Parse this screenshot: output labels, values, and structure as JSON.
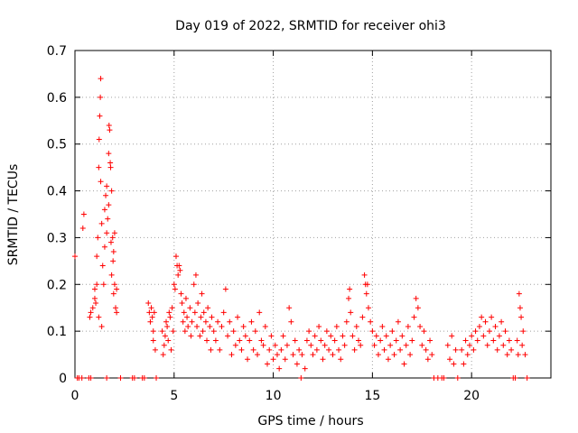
{
  "chart_data": {
    "type": "scatter",
    "title": "Day 019 of 2022, SRMTID for receiver ohi3",
    "xlabel": "GPS time / hours",
    "ylabel": "SRMTID / TECUs",
    "xlim": [
      0,
      24
    ],
    "ylim": [
      0,
      0.7
    ],
    "grid": true,
    "marker": "+",
    "colors": {
      "series": "#ff0000",
      "grid": "#a0a0a0",
      "axis": "#000000"
    },
    "xticks": [
      0,
      5,
      10,
      15,
      20
    ],
    "yticks": [
      0,
      0.1,
      0.2,
      0.3,
      0.4,
      0.5,
      0.6,
      0.7
    ],
    "xtick_labels": [
      "0",
      "5",
      "10",
      "15",
      "20"
    ],
    "ytick_labels": [
      "0",
      "0.1",
      "0.2",
      "0.3",
      "0.4",
      "0.5",
      "0.6",
      "0.7"
    ],
    "series": [
      {
        "name": "ohi3",
        "points": [
          [
            0.0,
            0.26
          ],
          [
            0.12,
            0.0
          ],
          [
            0.2,
            0.0
          ],
          [
            0.35,
            0.0
          ],
          [
            0.4,
            0.32
          ],
          [
            0.45,
            0.35
          ],
          [
            0.7,
            0.0
          ],
          [
            0.8,
            0.0
          ],
          [
            0.75,
            0.13
          ],
          [
            0.8,
            0.14
          ],
          [
            0.9,
            0.15
          ],
          [
            1.0,
            0.17
          ],
          [
            1.0,
            0.19
          ],
          [
            1.05,
            0.16
          ],
          [
            1.1,
            0.2
          ],
          [
            1.1,
            0.26
          ],
          [
            1.15,
            0.3
          ],
          [
            1.2,
            0.13
          ],
          [
            1.2,
            0.45
          ],
          [
            1.22,
            0.51
          ],
          [
            1.25,
            0.56
          ],
          [
            1.28,
            0.6
          ],
          [
            1.3,
            0.64
          ],
          [
            1.3,
            0.42
          ],
          [
            1.35,
            0.33
          ],
          [
            1.35,
            0.11
          ],
          [
            1.4,
            0.24
          ],
          [
            1.45,
            0.2
          ],
          [
            1.5,
            0.36
          ],
          [
            1.5,
            0.28
          ],
          [
            1.55,
            0.39
          ],
          [
            1.6,
            0.41
          ],
          [
            1.6,
            0.31
          ],
          [
            1.65,
            0.34
          ],
          [
            1.7,
            0.37
          ],
          [
            1.7,
            0.48
          ],
          [
            1.72,
            0.54
          ],
          [
            1.75,
            0.53
          ],
          [
            1.78,
            0.46
          ],
          [
            1.8,
            0.45
          ],
          [
            1.82,
            0.29
          ],
          [
            1.85,
            0.4
          ],
          [
            1.85,
            0.22
          ],
          [
            1.9,
            0.3
          ],
          [
            1.92,
            0.25
          ],
          [
            1.95,
            0.27
          ],
          [
            1.95,
            0.18
          ],
          [
            2.0,
            0.31
          ],
          [
            2.0,
            0.2
          ],
          [
            2.05,
            0.15
          ],
          [
            2.1,
            0.19
          ],
          [
            2.1,
            0.14
          ],
          [
            1.6,
            0.0
          ],
          [
            2.3,
            0.0
          ],
          [
            2.9,
            0.0
          ],
          [
            3.0,
            0.0
          ],
          [
            3.4,
            0.0
          ],
          [
            3.5,
            0.0
          ],
          [
            3.7,
            0.16
          ],
          [
            3.75,
            0.14
          ],
          [
            3.8,
            0.12
          ],
          [
            3.85,
            0.15
          ],
          [
            3.9,
            0.13
          ],
          [
            3.95,
            0.1
          ],
          [
            3.95,
            0.08
          ],
          [
            4.0,
            0.14
          ],
          [
            4.05,
            0.06
          ],
          [
            4.1,
            0.0
          ],
          [
            4.4,
            0.1
          ],
          [
            4.45,
            0.05
          ],
          [
            4.5,
            0.07
          ],
          [
            4.55,
            0.09
          ],
          [
            4.6,
            0.12
          ],
          [
            4.65,
            0.11
          ],
          [
            4.7,
            0.08
          ],
          [
            4.75,
            0.14
          ],
          [
            4.8,
            0.13
          ],
          [
            4.85,
            0.06
          ],
          [
            4.9,
            0.15
          ],
          [
            4.95,
            0.1
          ],
          [
            5.0,
            0.2
          ],
          [
            5.05,
            0.19
          ],
          [
            5.1,
            0.26
          ],
          [
            5.15,
            0.24
          ],
          [
            5.2,
            0.22
          ],
          [
            5.25,
            0.24
          ],
          [
            5.3,
            0.23
          ],
          [
            5.35,
            0.18
          ],
          [
            5.4,
            0.16
          ],
          [
            5.45,
            0.12
          ],
          [
            5.5,
            0.14
          ],
          [
            5.55,
            0.1
          ],
          [
            5.6,
            0.17
          ],
          [
            5.65,
            0.13
          ],
          [
            5.7,
            0.11
          ],
          [
            5.8,
            0.15
          ],
          [
            5.85,
            0.09
          ],
          [
            5.9,
            0.12
          ],
          [
            6.0,
            0.2
          ],
          [
            6.05,
            0.14
          ],
          [
            6.1,
            0.22
          ],
          [
            6.15,
            0.11
          ],
          [
            6.2,
            0.16
          ],
          [
            6.3,
            0.09
          ],
          [
            6.35,
            0.13
          ],
          [
            6.4,
            0.18
          ],
          [
            6.45,
            0.1
          ],
          [
            6.5,
            0.14
          ],
          [
            6.6,
            0.12
          ],
          [
            6.65,
            0.08
          ],
          [
            6.7,
            0.15
          ],
          [
            6.8,
            0.11
          ],
          [
            6.85,
            0.06
          ],
          [
            6.9,
            0.13
          ],
          [
            7.0,
            0.1
          ],
          [
            7.1,
            0.08
          ],
          [
            7.2,
            0.12
          ],
          [
            7.3,
            0.06
          ],
          [
            7.4,
            0.11
          ],
          [
            7.5,
            0.14
          ],
          [
            7.6,
            0.19
          ],
          [
            7.7,
            0.09
          ],
          [
            7.8,
            0.12
          ],
          [
            7.9,
            0.05
          ],
          [
            8.0,
            0.1
          ],
          [
            8.1,
            0.07
          ],
          [
            8.2,
            0.13
          ],
          [
            8.3,
            0.08
          ],
          [
            8.4,
            0.06
          ],
          [
            8.5,
            0.11
          ],
          [
            8.6,
            0.09
          ],
          [
            8.7,
            0.04
          ],
          [
            8.8,
            0.08
          ],
          [
            8.9,
            0.12
          ],
          [
            9.0,
            0.06
          ],
          [
            9.1,
            0.1
          ],
          [
            9.2,
            0.05
          ],
          [
            9.3,
            0.14
          ],
          [
            9.4,
            0.08
          ],
          [
            9.5,
            0.07
          ],
          [
            9.6,
            0.11
          ],
          [
            9.7,
            0.03
          ],
          [
            9.8,
            0.06
          ],
          [
            9.9,
            0.09
          ],
          [
            10.0,
            0.04
          ],
          [
            10.1,
            0.07
          ],
          [
            10.2,
            0.05
          ],
          [
            10.3,
            0.02
          ],
          [
            10.4,
            0.06
          ],
          [
            10.5,
            0.09
          ],
          [
            10.6,
            0.04
          ],
          [
            10.7,
            0.07
          ],
          [
            10.8,
            0.15
          ],
          [
            10.9,
            0.12
          ],
          [
            11.0,
            0.05
          ],
          [
            11.1,
            0.08
          ],
          [
            11.2,
            0.03
          ],
          [
            11.3,
            0.06
          ],
          [
            11.4,
            0.0
          ],
          [
            11.45,
            0.05
          ],
          [
            11.6,
            0.02
          ],
          [
            11.7,
            0.08
          ],
          [
            11.8,
            0.1
          ],
          [
            11.9,
            0.07
          ],
          [
            12.0,
            0.05
          ],
          [
            12.1,
            0.09
          ],
          [
            12.2,
            0.06
          ],
          [
            12.3,
            0.11
          ],
          [
            12.4,
            0.08
          ],
          [
            12.5,
            0.04
          ],
          [
            12.6,
            0.07
          ],
          [
            12.7,
            0.1
          ],
          [
            12.8,
            0.06
          ],
          [
            12.9,
            0.09
          ],
          [
            13.0,
            0.05
          ],
          [
            13.1,
            0.08
          ],
          [
            13.2,
            0.11
          ],
          [
            13.3,
            0.06
          ],
          [
            13.4,
            0.04
          ],
          [
            13.5,
            0.09
          ],
          [
            13.6,
            0.07
          ],
          [
            13.7,
            0.12
          ],
          [
            13.8,
            0.17
          ],
          [
            13.85,
            0.19
          ],
          [
            13.9,
            0.14
          ],
          [
            14.0,
            0.09
          ],
          [
            14.1,
            0.06
          ],
          [
            14.2,
            0.11
          ],
          [
            14.3,
            0.08
          ],
          [
            14.4,
            0.07
          ],
          [
            14.5,
            0.13
          ],
          [
            14.6,
            0.22
          ],
          [
            14.65,
            0.2
          ],
          [
            14.7,
            0.18
          ],
          [
            14.75,
            0.2
          ],
          [
            14.8,
            0.15
          ],
          [
            14.9,
            0.12
          ],
          [
            15.0,
            0.1
          ],
          [
            15.1,
            0.07
          ],
          [
            15.2,
            0.09
          ],
          [
            15.3,
            0.05
          ],
          [
            15.4,
            0.08
          ],
          [
            15.5,
            0.11
          ],
          [
            15.6,
            0.06
          ],
          [
            15.7,
            0.09
          ],
          [
            15.8,
            0.04
          ],
          [
            15.9,
            0.07
          ],
          [
            16.0,
            0.1
          ],
          [
            16.1,
            0.05
          ],
          [
            16.2,
            0.08
          ],
          [
            16.3,
            0.12
          ],
          [
            16.4,
            0.06
          ],
          [
            16.5,
            0.09
          ],
          [
            16.6,
            0.03
          ],
          [
            16.7,
            0.07
          ],
          [
            16.8,
            0.11
          ],
          [
            16.9,
            0.05
          ],
          [
            17.0,
            0.08
          ],
          [
            17.1,
            0.13
          ],
          [
            17.2,
            0.17
          ],
          [
            17.3,
            0.15
          ],
          [
            17.4,
            0.11
          ],
          [
            17.5,
            0.07
          ],
          [
            17.6,
            0.1
          ],
          [
            17.7,
            0.06
          ],
          [
            17.8,
            0.04
          ],
          [
            17.9,
            0.08
          ],
          [
            18.0,
            0.05
          ],
          [
            18.1,
            0.0
          ],
          [
            18.3,
            0.0
          ],
          [
            18.5,
            0.0
          ],
          [
            18.6,
            0.0
          ],
          [
            18.8,
            0.07
          ],
          [
            18.9,
            0.04
          ],
          [
            19.0,
            0.09
          ],
          [
            19.1,
            0.03
          ],
          [
            19.2,
            0.06
          ],
          [
            19.3,
            0.0
          ],
          [
            19.5,
            0.06
          ],
          [
            19.6,
            0.03
          ],
          [
            19.7,
            0.08
          ],
          [
            19.8,
            0.05
          ],
          [
            19.9,
            0.07
          ],
          [
            20.0,
            0.09
          ],
          [
            20.1,
            0.06
          ],
          [
            20.2,
            0.1
          ],
          [
            20.3,
            0.08
          ],
          [
            20.4,
            0.11
          ],
          [
            20.5,
            0.13
          ],
          [
            20.6,
            0.09
          ],
          [
            20.7,
            0.12
          ],
          [
            20.8,
            0.07
          ],
          [
            20.9,
            0.1
          ],
          [
            21.0,
            0.13
          ],
          [
            21.1,
            0.08
          ],
          [
            21.2,
            0.11
          ],
          [
            21.3,
            0.06
          ],
          [
            21.4,
            0.09
          ],
          [
            21.5,
            0.12
          ],
          [
            21.6,
            0.07
          ],
          [
            21.7,
            0.1
          ],
          [
            21.8,
            0.05
          ],
          [
            21.9,
            0.08
          ],
          [
            22.0,
            0.06
          ],
          [
            22.1,
            0.0
          ],
          [
            22.2,
            0.0
          ],
          [
            22.3,
            0.08
          ],
          [
            22.35,
            0.05
          ],
          [
            22.4,
            0.18
          ],
          [
            22.45,
            0.15
          ],
          [
            22.5,
            0.13
          ],
          [
            22.55,
            0.07
          ],
          [
            22.6,
            0.1
          ],
          [
            22.7,
            0.05
          ],
          [
            22.8,
            0.0
          ]
        ]
      }
    ]
  }
}
